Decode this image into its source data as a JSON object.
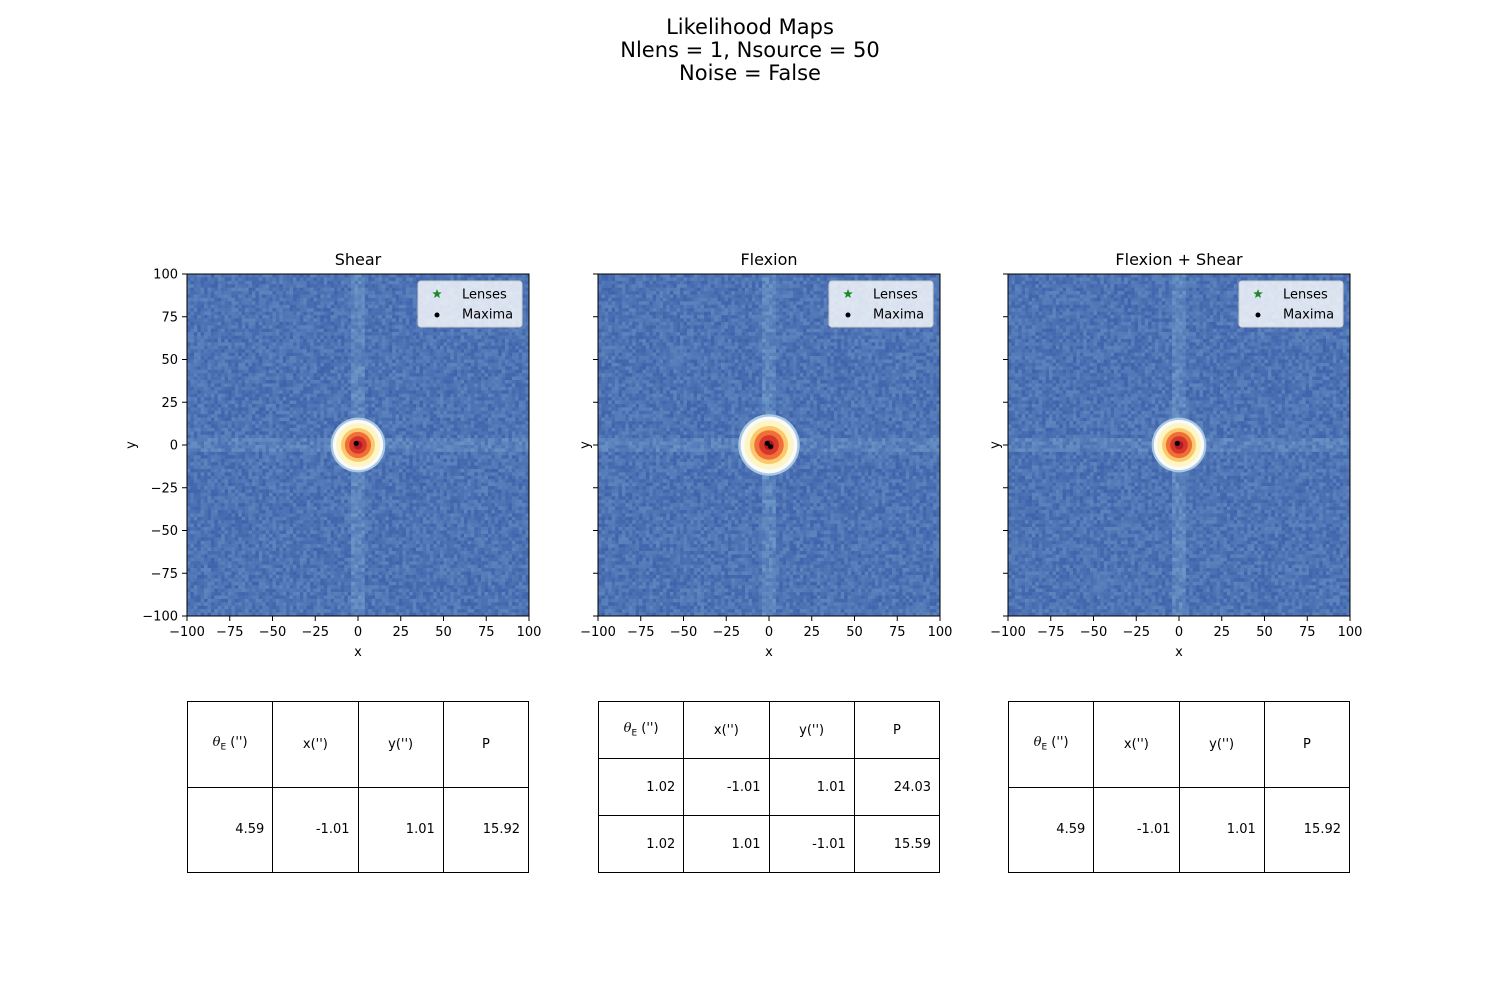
{
  "suptitle": [
    "Likelihood Maps",
    "Nlens = 1, Nsource = 50",
    "Noise = False"
  ],
  "chart_data": [
    {
      "type": "heatmap",
      "title": "Shear",
      "xlabel": "x",
      "ylabel": "y",
      "xlim": [
        -100,
        100
      ],
      "ylim": [
        -100,
        100
      ],
      "xticks": [
        -100,
        -75,
        -50,
        -25,
        0,
        25,
        50,
        75,
        100
      ],
      "yticks": [
        -100,
        -75,
        -50,
        -25,
        0,
        25,
        50,
        75,
        100
      ],
      "show_ytick_labels": true,
      "peak": {
        "x": 0,
        "y": 0,
        "radius": 16
      },
      "legend": {
        "placement": "upper-right",
        "entries": [
          "Lenses",
          "Maxima"
        ]
      },
      "lenses": [
        {
          "x": -1,
          "y": 1
        }
      ],
      "maxima": [
        {
          "x": -1,
          "y": 1
        }
      ],
      "table": {
        "headers": [
          "θE ('')",
          "x('')",
          "y('')",
          "P"
        ],
        "rows": [
          [
            "4.59",
            "-1.01",
            "1.01",
            "15.92"
          ]
        ]
      }
    },
    {
      "type": "heatmap",
      "title": "Flexion",
      "xlabel": "x",
      "ylabel": "y",
      "xlim": [
        -100,
        100
      ],
      "ylim": [
        -100,
        100
      ],
      "xticks": [
        -100,
        -75,
        -50,
        -25,
        0,
        25,
        50,
        75,
        100
      ],
      "yticks": [
        -100,
        -75,
        -50,
        -25,
        0,
        25,
        50,
        75,
        100
      ],
      "show_ytick_labels": false,
      "peak": {
        "x": 0,
        "y": 0,
        "radius": 18
      },
      "legend": {
        "placement": "upper-right",
        "entries": [
          "Lenses",
          "Maxima"
        ]
      },
      "lenses": [
        {
          "x": -1,
          "y": 1
        }
      ],
      "maxima": [
        {
          "x": -1,
          "y": 1
        },
        {
          "x": 1,
          "y": -1
        }
      ],
      "table": {
        "headers": [
          "θE ('')",
          "x('')",
          "y('')",
          "P"
        ],
        "rows": [
          [
            "1.02",
            "-1.01",
            "1.01",
            "24.03"
          ],
          [
            "1.02",
            "1.01",
            "-1.01",
            "15.59"
          ]
        ]
      }
    },
    {
      "type": "heatmap",
      "title": "Flexion + Shear",
      "xlabel": "x",
      "ylabel": "y",
      "xlim": [
        -100,
        100
      ],
      "ylim": [
        -100,
        100
      ],
      "xticks": [
        -100,
        -75,
        -50,
        -25,
        0,
        25,
        50,
        75,
        100
      ],
      "yticks": [
        -100,
        -75,
        -50,
        -25,
        0,
        25,
        50,
        75,
        100
      ],
      "show_ytick_labels": false,
      "peak": {
        "x": 0,
        "y": 0,
        "radius": 16
      },
      "legend": {
        "placement": "upper-right",
        "entries": [
          "Lenses",
          "Maxima"
        ]
      },
      "lenses": [
        {
          "x": -1,
          "y": 1
        }
      ],
      "maxima": [
        {
          "x": -1,
          "y": 1
        }
      ],
      "table": {
        "headers": [
          "θE ('')",
          "x('')",
          "y('')",
          "P"
        ],
        "rows": [
          [
            "4.59",
            "-1.01",
            "1.01",
            "15.92"
          ]
        ]
      }
    }
  ],
  "colors": {
    "background_low": "#3a5ca8",
    "background_high": "#6f9bc9",
    "peak_core": "#b31529",
    "peak_ring": "#fdf5c3",
    "lens_marker": "#1f8a2a",
    "maxima_marker": "#000000"
  }
}
